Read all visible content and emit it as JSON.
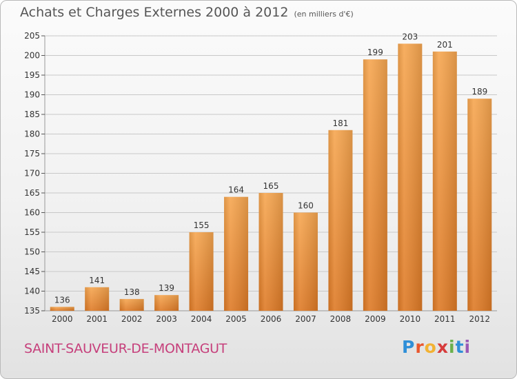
{
  "header": {
    "title": "Achats et Charges Externes 2000 à 2012",
    "subtitle": "(en milliers d'€)"
  },
  "footer": {
    "commune": "SAINT-SAUVEUR-DE-MONTAGUT",
    "brand_letters": [
      "P",
      "r",
      "o",
      "x",
      "i",
      "t",
      "i"
    ],
    "brand_colors": [
      "#2f8fd8",
      "#e9572e",
      "#f2b233",
      "#d63b3b",
      "#6ab04c",
      "#2f8fd8",
      "#9b59b6"
    ]
  },
  "colors": {
    "bar_light": "#f6a650",
    "bar_dark": "#de7a26",
    "grid": "#c8c8c8",
    "axis_text": "#333333"
  },
  "chart_data": {
    "type": "bar",
    "title": "Achats et Charges Externes 2000 à 2012",
    "subtitle": "(en milliers d'€)",
    "categories": [
      "2000",
      "2001",
      "2002",
      "2003",
      "2004",
      "2005",
      "2006",
      "2007",
      "2008",
      "2009",
      "2010",
      "2011",
      "2012"
    ],
    "values": [
      136,
      141,
      138,
      139,
      155,
      164,
      165,
      160,
      181,
      199,
      203,
      201,
      189
    ],
    "ylim": [
      135,
      205
    ],
    "yticks": [
      135,
      140,
      145,
      150,
      155,
      160,
      165,
      170,
      175,
      180,
      185,
      190,
      195,
      200,
      205
    ],
    "grid": true,
    "data_labels": true
  }
}
